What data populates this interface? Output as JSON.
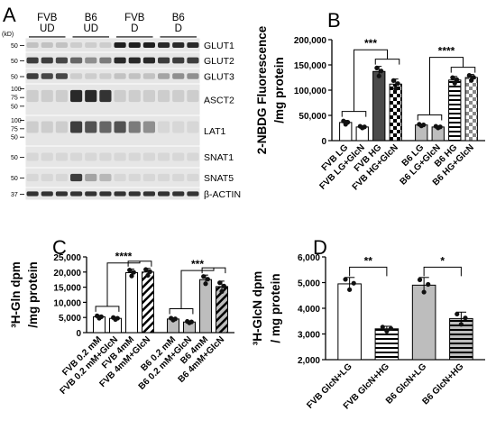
{
  "panel_a": {
    "letter": "A",
    "kd_label": "(kD)",
    "groups": [
      "FVB\nUD",
      "B6\nUD",
      "FVB\nD",
      "B6\nD"
    ],
    "lanes_per_group": 3,
    "blots": [
      {
        "label": "GLUT1",
        "markers": [
          "50"
        ],
        "bands": [
          0.15,
          0.15,
          0.15,
          0.1,
          0.1,
          0.1,
          0.95,
          0.95,
          0.95,
          0.9,
          0.9,
          0.9
        ]
      },
      {
        "label": "GLUT2",
        "markers": [
          "50"
        ],
        "bands": [
          0.8,
          0.8,
          0.75,
          0.6,
          0.4,
          0.5,
          0.9,
          0.9,
          0.9,
          0.8,
          0.8,
          0.8
        ]
      },
      {
        "label": "GLUT3",
        "markers": [
          "50"
        ],
        "bands": [
          0.8,
          0.75,
          0.75,
          0.1,
          0.1,
          0.1,
          0.15,
          0.15,
          0.15,
          0.3,
          0.4,
          0.4
        ]
      },
      {
        "label": "ASCT2",
        "markers": [
          "100",
          "75",
          "50"
        ],
        "bands": [
          0.1,
          0.1,
          0.1,
          0.9,
          0.9,
          0.85,
          0.1,
          0.1,
          0.1,
          0.1,
          0.1,
          0.1
        ]
      },
      {
        "label": "LAT1",
        "markers": [
          "100",
          "75",
          "50"
        ],
        "bands": [
          0.1,
          0.1,
          0.1,
          0.8,
          0.7,
          0.6,
          0.7,
          0.5,
          0.4,
          0.05,
          0.05,
          0.05
        ]
      },
      {
        "label": "SNAT1",
        "markers": [
          "50"
        ],
        "bands": [
          0.05,
          0.05,
          0.05,
          0.05,
          0.05,
          0.05,
          0.05,
          0.05,
          0.05,
          0.05,
          0.05,
          0.05
        ]
      },
      {
        "label": "SNAT5",
        "markers": [
          "50"
        ],
        "bands": [
          0.05,
          0.05,
          0.05,
          0.8,
          0.3,
          0.2,
          0.05,
          0.05,
          0.05,
          0.05,
          0.05,
          0.05
        ]
      },
      {
        "label": "β-ACTIN",
        "markers": [
          "37"
        ],
        "bands": [
          0.85,
          0.85,
          0.85,
          0.85,
          0.85,
          0.85,
          0.85,
          0.85,
          0.85,
          0.85,
          0.85,
          0.85
        ]
      }
    ]
  },
  "chart_data": [
    {
      "panel": "B",
      "type": "bar",
      "ylabel": "2-NBDG Fluorescence\n/mg protein",
      "ylim": [
        0,
        200000
      ],
      "yticks": [
        "0",
        "50,000",
        "100,000",
        "150,000",
        "200,000"
      ],
      "categories": [
        "FVB LG",
        "FVB LG+GlcN",
        "FVB HG",
        "FVB HG+GlcN",
        "B6 LG",
        "B6 LG+GlcN",
        "B6 HG",
        "B6 HG+GlcN"
      ],
      "values": [
        36000,
        27000,
        137000,
        112000,
        31000,
        27000,
        120000,
        125000
      ],
      "errors": [
        4000,
        2000,
        10000,
        10000,
        2000,
        2000,
        7000,
        6000
      ],
      "fills": [
        "white",
        "white",
        "dark",
        "checker",
        "gray",
        "gray",
        "hstripe",
        "graychecker"
      ],
      "significance": [
        {
          "label": "***",
          "groupA": [
            0,
            1
          ],
          "groupB": [
            2,
            3
          ],
          "y": 180000
        },
        {
          "label": "****",
          "groupA": [
            4,
            5
          ],
          "groupB": [
            6,
            7
          ],
          "y": 165000
        }
      ]
    },
    {
      "panel": "C",
      "type": "bar",
      "ylabel": "³H-Gln dpm\n/mg protein",
      "ylim": [
        0,
        25000
      ],
      "yticks": [
        "0",
        "5,000",
        "10,000",
        "15,000",
        "20,000",
        "25,000"
      ],
      "categories": [
        "FVB 0.2 mM",
        "FVB 0.2 mM+GlcN",
        "FVB 4mM",
        "FVB 4mM+GlcN",
        "B6 0.2 mM",
        "B6 0.2 mM+GlcN",
        "B6 4mM",
        "B6 4mM+GlcN"
      ],
      "values": [
        5200,
        4700,
        19800,
        20000,
        4500,
        3500,
        17500,
        15200
      ],
      "errors": [
        500,
        400,
        1200,
        1200,
        400,
        300,
        1500,
        1800
      ],
      "fills": [
        "white",
        "white",
        "white",
        "diag",
        "gray",
        "gray",
        "gray",
        "graydiag"
      ],
      "significance": [
        {
          "label": "****",
          "groupA": [
            0,
            1
          ],
          "groupB": [
            2,
            3
          ],
          "y": 23000
        },
        {
          "label": "***",
          "groupA": [
            4,
            5
          ],
          "groupB": [
            6,
            7
          ],
          "y": 20500
        }
      ]
    },
    {
      "panel": "D",
      "type": "bar",
      "ylabel": "³H-GlcN dpm\n/ mg protein",
      "ylim": [
        2000,
        6000
      ],
      "yticks": [
        "2,000",
        "3,000",
        "4,000",
        "5,000",
        "6,000"
      ],
      "categories": [
        "FVB GlcN+LG",
        "FVB GlcN+HG",
        "B6 GlcN+LG",
        "B6 GlcN+HG"
      ],
      "values": [
        4950,
        3200,
        4900,
        3600
      ],
      "errors": [
        250,
        100,
        300,
        250
      ],
      "fills": [
        "white",
        "hstripe",
        "gray",
        "grayhstripe"
      ],
      "significance": [
        {
          "label": "**",
          "groupA": [
            0
          ],
          "groupB": [
            1
          ],
          "y": 5600
        },
        {
          "label": "*",
          "groupA": [
            2
          ],
          "groupB": [
            3
          ],
          "y": 5600
        }
      ]
    }
  ]
}
